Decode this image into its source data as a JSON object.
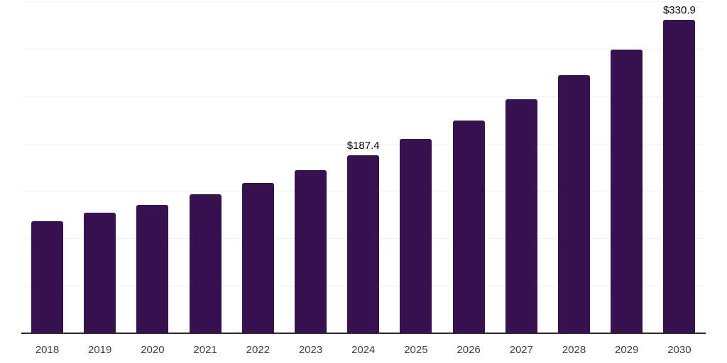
{
  "chart_data": {
    "type": "bar",
    "title": "",
    "xlabel": "",
    "ylabel": "",
    "categories": [
      "2018",
      "2019",
      "2020",
      "2021",
      "2022",
      "2023",
      "2024",
      "2025",
      "2026",
      "2027",
      "2028",
      "2029",
      "2030"
    ],
    "values": [
      118.2,
      127.1,
      135.4,
      146.9,
      158.4,
      171.8,
      187.4,
      204.9,
      224.6,
      247.0,
      271.9,
      299.4,
      330.9
    ],
    "data_labels": [
      "",
      "",
      "",
      "",
      "",
      "",
      "$187.4",
      "",
      "",
      "",
      "",
      "",
      "$330.9"
    ],
    "ylim": [
      0,
      350
    ],
    "gridline_interval": 50,
    "grid": "horizontal-only",
    "legend_position": "none",
    "y_tick_labels_visible": false,
    "colors": {
      "bar": "#37124f",
      "axis_line": "#2e2e2e",
      "gridline": "#f2f2f4",
      "data_label": "#0a0a0a",
      "tick_label": "#404040"
    }
  }
}
